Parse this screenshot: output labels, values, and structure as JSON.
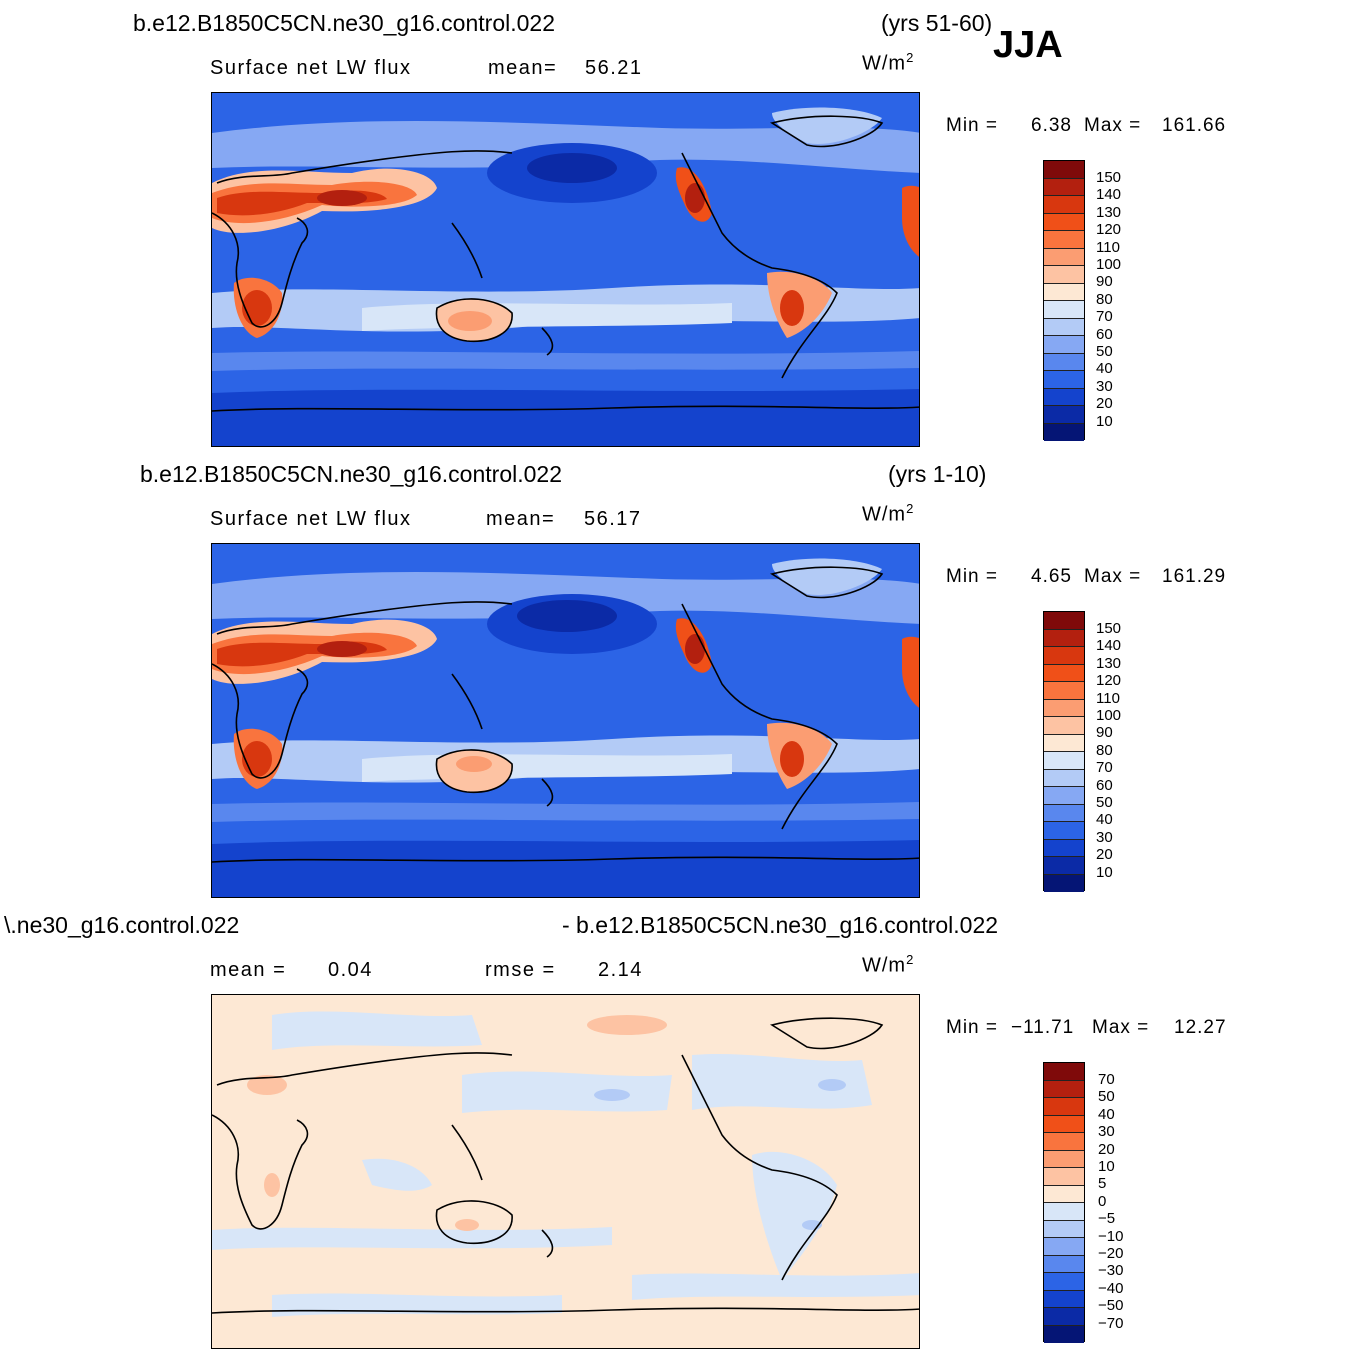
{
  "season": "JJA",
  "units_main": "W/m",
  "units_sup": "2",
  "panels": [
    {
      "case": "b.e12.B1850C5CN.ne30_g16.control.022",
      "years": "(yrs 51-60)",
      "variable": "Surface  net  LW  flux",
      "stat_left": "mean=",
      "stat_left_value": "56.21",
      "min_label": "Min  =",
      "min_value": "6.38",
      "max_label": "Max  =",
      "max_value": "161.66",
      "colorbar": {
        "labels": [
          "150",
          "140",
          "130",
          "120",
          "110",
          "100",
          "90",
          "80",
          "70",
          "60",
          "50",
          "40",
          "30",
          "20",
          "10"
        ],
        "colors": [
          "#7f0a0a",
          "#b3200f",
          "#d8370f",
          "#f05018",
          "#f9743e",
          "#fb9d72",
          "#fdc3a3",
          "#fde8d4",
          "#d8e6f8",
          "#b3cbf6",
          "#86a8f3",
          "#5987ee",
          "#2c64e6",
          "#1443cd",
          "#0b2aa6",
          "#051575"
        ]
      }
    },
    {
      "case": "b.e12.B1850C5CN.ne30_g16.control.022",
      "years": "(yrs 1-10)",
      "variable": "Surface  net  LW  flux",
      "stat_left": "mean=",
      "stat_left_value": "56.17",
      "min_label": "Min  =",
      "min_value": "4.65",
      "max_label": "Max  =",
      "max_value": "161.29",
      "colorbar": {
        "labels": [
          "150",
          "140",
          "130",
          "120",
          "110",
          "100",
          "90",
          "80",
          "70",
          "60",
          "50",
          "40",
          "30",
          "20",
          "10"
        ],
        "colors": [
          "#7f0a0a",
          "#b3200f",
          "#d8370f",
          "#f05018",
          "#f9743e",
          "#fb9d72",
          "#fdc3a3",
          "#fde8d4",
          "#d8e6f8",
          "#b3cbf6",
          "#86a8f3",
          "#5987ee",
          "#2c64e6",
          "#1443cd",
          "#0b2aa6",
          "#051575"
        ]
      }
    },
    {
      "case_left": "\\.ne30_g16.control.022",
      "case_right": "- b.e12.B1850C5CN.ne30_g16.control.022",
      "stat_left": "mean  =",
      "stat_left_value": "0.04",
      "stat_right": "rmse  =",
      "stat_right_value": "2.14",
      "min_label": "Min  =",
      "min_value": "−11.71",
      "max_label": "Max  =",
      "max_value": "12.27",
      "colorbar": {
        "labels": [
          "70",
          "50",
          "40",
          "30",
          "20",
          "10",
          "5",
          "0",
          "−5",
          "−10",
          "−20",
          "−30",
          "−40",
          "−50",
          "−70"
        ],
        "colors": [
          "#7f0a0a",
          "#b3200f",
          "#d8370f",
          "#f05018",
          "#f9743e",
          "#fb9d72",
          "#fdc3a3",
          "#fde8d4",
          "#d8e6f8",
          "#b3cbf6",
          "#86a8f3",
          "#5987ee",
          "#2c64e6",
          "#1443cd",
          "#0b2aa6",
          "#051575"
        ]
      }
    }
  ]
}
